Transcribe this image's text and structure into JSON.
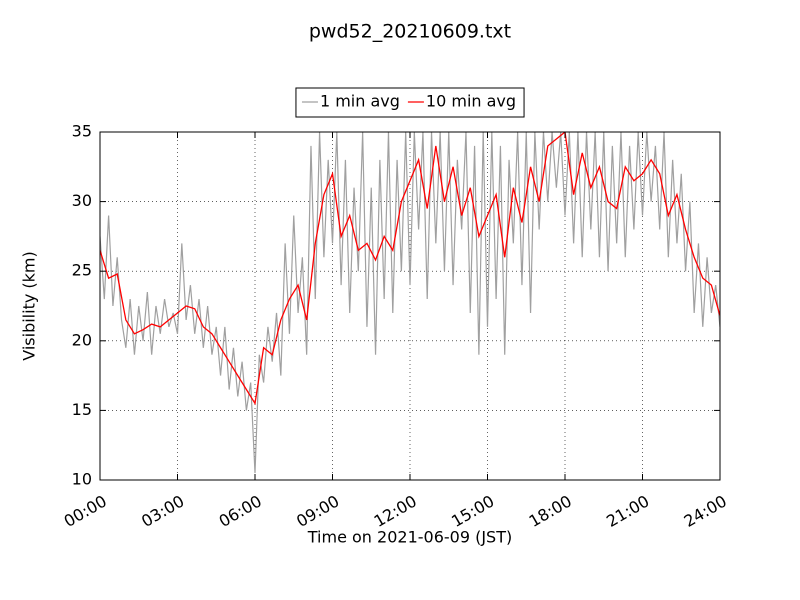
{
  "chart_data": {
    "type": "line",
    "title": "pwd52_20210609.txt",
    "x_label": "Time on 2021-06-09 (JST)",
    "y_label": "Visibility (km)",
    "xlim": [
      0,
      1440
    ],
    "ylim": [
      10,
      35
    ],
    "xticks": [
      {
        "value": 0,
        "label": "00:00"
      },
      {
        "value": 180,
        "label": "03:00"
      },
      {
        "value": 360,
        "label": "06:00"
      },
      {
        "value": 540,
        "label": "09:00"
      },
      {
        "value": 720,
        "label": "12:00"
      },
      {
        "value": 900,
        "label": "15:00"
      },
      {
        "value": 1080,
        "label": "18:00"
      },
      {
        "value": 1260,
        "label": "21:00"
      },
      {
        "value": 1440,
        "label": "24:00"
      }
    ],
    "yticks": [
      10,
      15,
      20,
      25,
      30,
      35
    ],
    "grid": true,
    "legend": "upper center",
    "series": [
      {
        "name": "1 min avg",
        "color": "#a0a0a0",
        "x": [
          0,
          10,
          20,
          30,
          40,
          50,
          60,
          70,
          80,
          90,
          100,
          110,
          120,
          130,
          140,
          150,
          160,
          170,
          180,
          190,
          200,
          210,
          220,
          230,
          240,
          250,
          260,
          270,
          280,
          290,
          300,
          310,
          320,
          330,
          340,
          350,
          360,
          370,
          380,
          390,
          400,
          410,
          420,
          430,
          440,
          450,
          460,
          470,
          480,
          490,
          500,
          510,
          520,
          530,
          540,
          550,
          560,
          570,
          580,
          590,
          600,
          610,
          620,
          630,
          640,
          650,
          660,
          670,
          680,
          690,
          700,
          710,
          720,
          730,
          740,
          750,
          760,
          770,
          780,
          790,
          800,
          810,
          820,
          830,
          840,
          850,
          860,
          870,
          880,
          890,
          900,
          910,
          920,
          930,
          940,
          950,
          960,
          970,
          980,
          990,
          1000,
          1010,
          1020,
          1030,
          1040,
          1050,
          1060,
          1070,
          1080,
          1090,
          1100,
          1110,
          1120,
          1130,
          1140,
          1150,
          1160,
          1170,
          1180,
          1190,
          1200,
          1210,
          1220,
          1230,
          1240,
          1250,
          1260,
          1270,
          1280,
          1290,
          1300,
          1310,
          1320,
          1330,
          1340,
          1350,
          1360,
          1370,
          1380,
          1390,
          1400,
          1410,
          1420,
          1430,
          1440
        ],
        "values": [
          27.5,
          23,
          29,
          22.5,
          26,
          21.5,
          19.5,
          23,
          19,
          22.5,
          20,
          23.5,
          19,
          22.5,
          20.5,
          23,
          21,
          22,
          20.5,
          27,
          21.5,
          24,
          20.5,
          23,
          19.5,
          22.5,
          19,
          21,
          17.5,
          21,
          16.5,
          19.5,
          16,
          18.5,
          15,
          17,
          10.5,
          19,
          17,
          21,
          18.5,
          22,
          17.5,
          27,
          20.5,
          29,
          22,
          26,
          19,
          34,
          23,
          35,
          26,
          33,
          27,
          35,
          24,
          33,
          22,
          31,
          25,
          35,
          21,
          31,
          19,
          33,
          23,
          35,
          22,
          33,
          25,
          35,
          24,
          35,
          28,
          35,
          23,
          35,
          27,
          35,
          25,
          35,
          24,
          33,
          28,
          35,
          22,
          34,
          19,
          35,
          21,
          35,
          23,
          34,
          19,
          33,
          27,
          35,
          24,
          35,
          22,
          35,
          28,
          35,
          30,
          35,
          31,
          35,
          29,
          35,
          27,
          35,
          26,
          35,
          28,
          35,
          26,
          35,
          25,
          34,
          27,
          35,
          26,
          34,
          28,
          35,
          29,
          35,
          30,
          34,
          28,
          35,
          26,
          33,
          27,
          32,
          25,
          30,
          22,
          27,
          21,
          26,
          22,
          24,
          21
        ]
      },
      {
        "name": "10 min avg",
        "color": "#ff0000",
        "x": [
          0,
          20,
          40,
          60,
          80,
          100,
          120,
          140,
          160,
          180,
          200,
          220,
          240,
          260,
          280,
          300,
          320,
          340,
          360,
          380,
          400,
          420,
          440,
          460,
          480,
          500,
          520,
          540,
          560,
          580,
          600,
          620,
          640,
          660,
          680,
          700,
          720,
          740,
          760,
          780,
          800,
          820,
          840,
          860,
          880,
          900,
          920,
          940,
          960,
          980,
          1000,
          1020,
          1040,
          1060,
          1080,
          1100,
          1120,
          1140,
          1160,
          1180,
          1200,
          1220,
          1240,
          1260,
          1280,
          1300,
          1320,
          1340,
          1360,
          1380,
          1400,
          1420,
          1440
        ],
        "values": [
          26.5,
          24.5,
          24.8,
          21.5,
          20.5,
          20.8,
          21.2,
          21.0,
          21.5,
          22.0,
          22.5,
          22.3,
          21.0,
          20.5,
          19.5,
          18.5,
          17.5,
          16.5,
          15.5,
          19.5,
          19.0,
          21.5,
          23.0,
          24.0,
          21.5,
          27.0,
          30.5,
          32.0,
          27.5,
          29.0,
          26.5,
          27.0,
          25.8,
          27.5,
          26.5,
          30.0,
          31.5,
          33.0,
          29.5,
          34.0,
          30.0,
          32.5,
          29.0,
          31.0,
          27.5,
          29.0,
          30.5,
          26.0,
          31.0,
          28.5,
          32.5,
          30.0,
          34.0,
          34.5,
          35.0,
          30.5,
          33.5,
          31.0,
          32.5,
          30.0,
          29.5,
          32.5,
          31.5,
          32.0,
          33.0,
          32.0,
          29.0,
          30.5,
          28.0,
          26.0,
          24.5,
          24.0,
          21.8
        ]
      }
    ]
  }
}
